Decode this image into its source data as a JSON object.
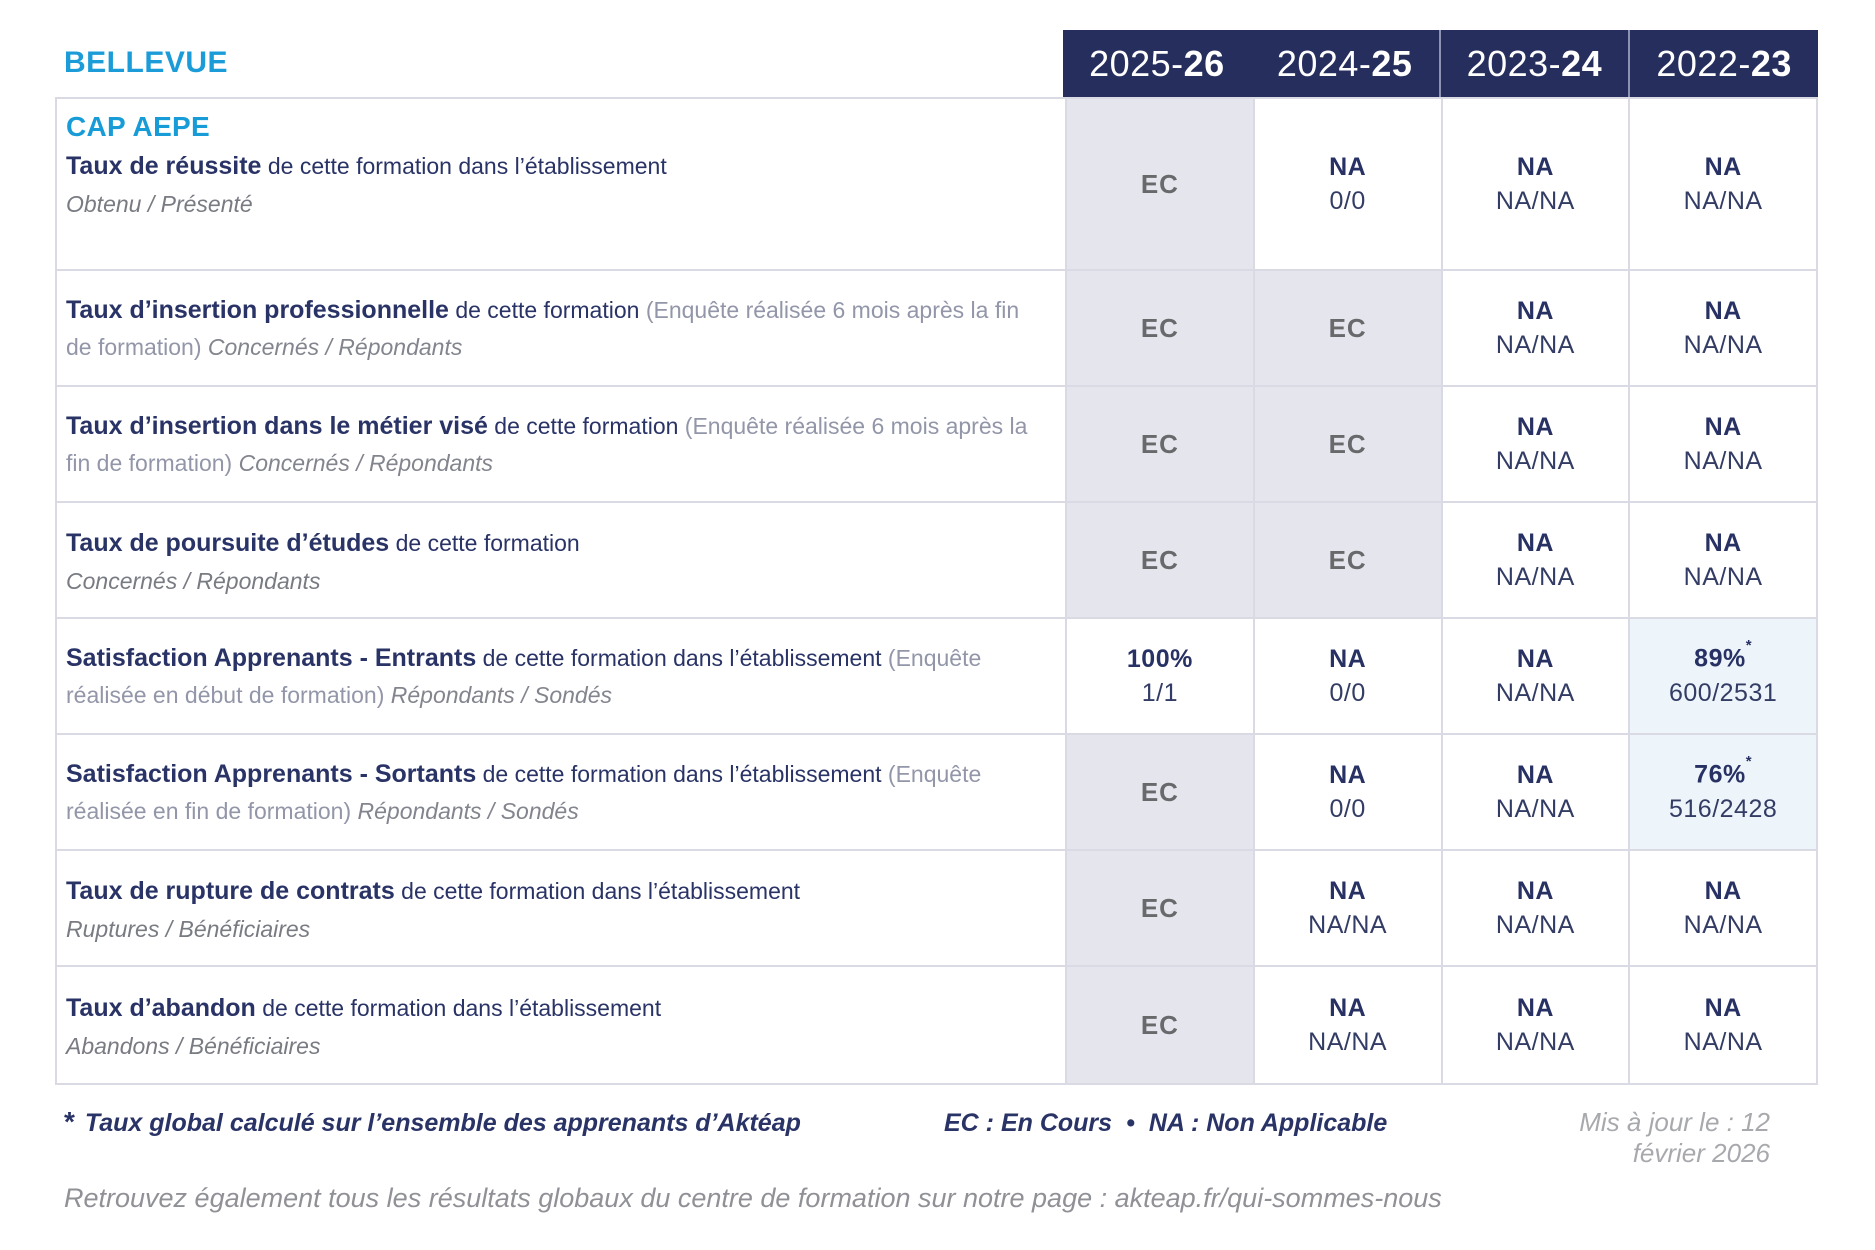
{
  "brand": "BELLEVUE",
  "program": "CAP AEPE",
  "colors": {
    "brand_blue": "#1b9cd9",
    "header_navy": "#252e5c",
    "text_navy": "#293366",
    "ec_cell_bg": "#e5e5ee",
    "highlight_cell_bg": "#edf5fb"
  },
  "columns": [
    {
      "prefix": "2025-",
      "suffix": "26"
    },
    {
      "prefix": "2024-",
      "suffix": "25"
    },
    {
      "prefix": "2023-",
      "suffix": "24"
    },
    {
      "prefix": "2022-",
      "suffix": "23"
    }
  ],
  "rows": [
    {
      "title_bold": "Taux de réussite",
      "title_rest": " de cette formation dans l’établissement",
      "title_paren": "",
      "title_tail": "",
      "subtitle": "Obtenu / Présenté",
      "cells": [
        {
          "main": "EC",
          "sub": ""
        },
        {
          "main": "NA",
          "sub": "0/0"
        },
        {
          "main": "NA",
          "sub": "NA/NA"
        },
        {
          "main": "NA",
          "sub": "NA/NA"
        }
      ]
    },
    {
      "title_bold": "Taux d’insertion professionnelle",
      "title_rest": " de cette formation ",
      "title_paren": "(Enquête réalisée 6 mois après la fin de formation) ",
      "title_tail": "Concernés / Répondants",
      "subtitle": "",
      "cells": [
        {
          "main": "EC",
          "sub": ""
        },
        {
          "main": "EC",
          "sub": ""
        },
        {
          "main": "NA",
          "sub": "NA/NA"
        },
        {
          "main": "NA",
          "sub": "NA/NA"
        }
      ]
    },
    {
      "title_bold": "Taux d’insertion dans le métier visé",
      "title_rest": " de cette formation ",
      "title_paren": "(Enquête réalisée 6 mois après la fin de formation) ",
      "title_tail": "Concernés / Répondants",
      "subtitle": "",
      "cells": [
        {
          "main": "EC",
          "sub": ""
        },
        {
          "main": "EC",
          "sub": ""
        },
        {
          "main": "NA",
          "sub": "NA/NA"
        },
        {
          "main": "NA",
          "sub": "NA/NA"
        }
      ]
    },
    {
      "title_bold": "Taux de poursuite d’études",
      "title_rest": " de cette formation",
      "title_paren": "",
      "title_tail": "",
      "subtitle": "Concernés / Répondants",
      "cells": [
        {
          "main": "EC",
          "sub": ""
        },
        {
          "main": "EC",
          "sub": ""
        },
        {
          "main": "NA",
          "sub": "NA/NA"
        },
        {
          "main": "NA",
          "sub": "NA/NA"
        }
      ]
    },
    {
      "title_bold": "Satisfaction Apprenants - Entrants",
      "title_rest": " de cette formation dans l’établissement ",
      "title_paren": "(Enquête réalisée en début de formation) ",
      "title_tail": "Répondants / Sondés",
      "subtitle": "",
      "cells": [
        {
          "main": "100%",
          "sub": "1/1"
        },
        {
          "main": "NA",
          "sub": "0/0"
        },
        {
          "main": "NA",
          "sub": "NA/NA"
        },
        {
          "main": "89%",
          "star": "*",
          "sub": "600/2531"
        }
      ]
    },
    {
      "title_bold": "Satisfaction Apprenants - Sortants",
      "title_rest": " de cette formation dans l’établissement ",
      "title_paren": "(Enquête réalisée en fin de formation) ",
      "title_tail": "Répondants / Sondés",
      "subtitle": "",
      "cells": [
        {
          "main": "EC",
          "sub": ""
        },
        {
          "main": "NA",
          "sub": "0/0"
        },
        {
          "main": "NA",
          "sub": "NA/NA"
        },
        {
          "main": "76%",
          "star": "*",
          "sub": "516/2428"
        }
      ]
    },
    {
      "title_bold": "Taux de rupture de contrats",
      "title_rest": " de cette formation dans l’établissement",
      "title_paren": "",
      "title_tail": "",
      "subtitle": "Ruptures / Bénéficiaires",
      "cells": [
        {
          "main": "EC",
          "sub": ""
        },
        {
          "main": "NA",
          "sub": "NA/NA"
        },
        {
          "main": "NA",
          "sub": "NA/NA"
        },
        {
          "main": "NA",
          "sub": "NA/NA"
        }
      ]
    },
    {
      "title_bold": "Taux d’abandon",
      "title_rest": " de cette formation dans l’établissement",
      "title_paren": "",
      "title_tail": "",
      "subtitle": "Abandons / Bénéficiaires",
      "cells": [
        {
          "main": "EC",
          "sub": ""
        },
        {
          "main": "NA",
          "sub": "NA/NA"
        },
        {
          "main": "NA",
          "sub": "NA/NA"
        },
        {
          "main": "NA",
          "sub": "NA/NA"
        }
      ]
    }
  ],
  "footer": {
    "star": "*",
    "note": "Taux global calculé sur l’ensemble des apprenants d’Aktéap",
    "legend_ec": "EC : En Cours",
    "legend_sep": "•",
    "legend_na": "NA : Non Applicable",
    "updated": "Mis à jour le : 12 février 2026",
    "bottom_note": "Retrouvez également tous les résultats globaux du centre de formation sur notre page : akteap.fr/qui-sommes-nous"
  }
}
